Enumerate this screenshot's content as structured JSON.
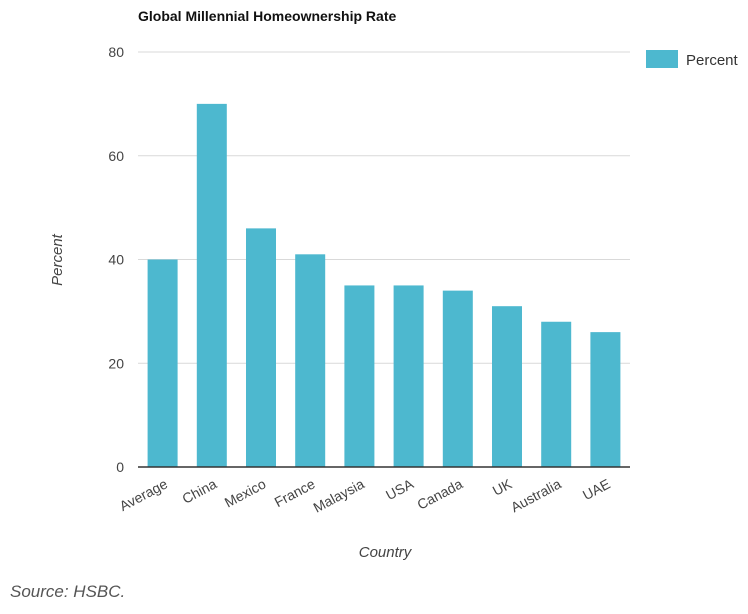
{
  "chart_data": {
    "type": "bar",
    "title": "Global Millennial Homeownership Rate",
    "xlabel": "Country",
    "ylabel": "Percent",
    "categories": [
      "Average",
      "China",
      "Mexico",
      "France",
      "Malaysia",
      "USA",
      "Canada",
      "UK",
      "Australia",
      "UAE"
    ],
    "series": [
      {
        "name": "Percent",
        "values": [
          40,
          70,
          46,
          41,
          35,
          35,
          34,
          31,
          28,
          26
        ]
      }
    ],
    "ylim": [
      0,
      80
    ],
    "yticks": [
      0,
      20,
      40,
      60,
      80
    ],
    "grid": true,
    "legend": "top-right",
    "bar_color": "#4db8cf",
    "grid_color": "#d9d9d9",
    "axis_color": "#333333"
  },
  "source": "Source: HSBC."
}
